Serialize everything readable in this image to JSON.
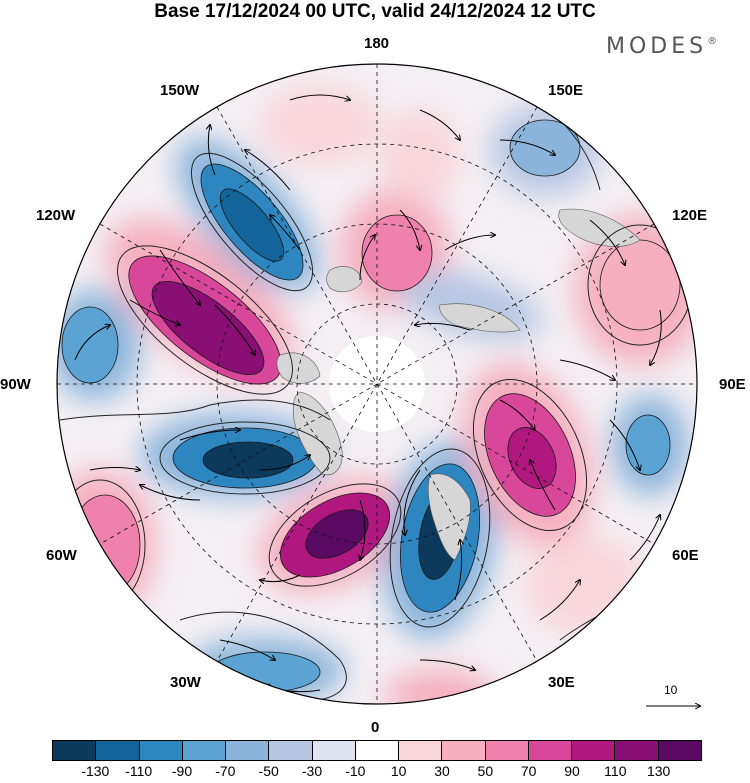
{
  "title": "Base 17/12/2024 00 UTC, valid 24/12/2024 12 UTC",
  "brand": "MODES",
  "brand_mark": "®",
  "longitude_labels": {
    "top": "180",
    "ne150": "150E",
    "nw150": "150W",
    "w120": "120W",
    "e120": "120E",
    "w90": "90W",
    "e90": "90E",
    "w60": "60W",
    "e60": "60E",
    "w30": "30W",
    "e30": "30E",
    "bottom": "0"
  },
  "wind_scale": {
    "value": "10"
  },
  "colorbar": {
    "ticks": [
      "-130",
      "-110",
      "-90",
      "-70",
      "-50",
      "-30",
      "-10",
      "10",
      "30",
      "50",
      "70",
      "90",
      "110",
      "130"
    ],
    "colors": [
      "#0b3a5c",
      "#13649a",
      "#2e86c1",
      "#5aa3d3",
      "#8ab4db",
      "#b7c6e3",
      "#e0e3f0",
      "#ffffff",
      "#f8d6dc",
      "#f5afc0",
      "#ee82ac",
      "#d9479b",
      "#b0177f",
      "#8a0f74",
      "#5a0a63"
    ]
  },
  "anomalies": [
    {
      "level": 110,
      "color": "#8a0f74"
    },
    {
      "level": 90,
      "color": "#b0177f"
    },
    {
      "level": -110,
      "color": "#13649a"
    },
    {
      "level": -90,
      "color": "#2e86c1"
    },
    {
      "level": 70,
      "color": "#ee82ac"
    },
    {
      "level": -70,
      "color": "#5aa3d3"
    },
    {
      "level": 30,
      "color": "#f8d6dc"
    },
    {
      "level": -30,
      "color": "#b7c6e3"
    }
  ]
}
